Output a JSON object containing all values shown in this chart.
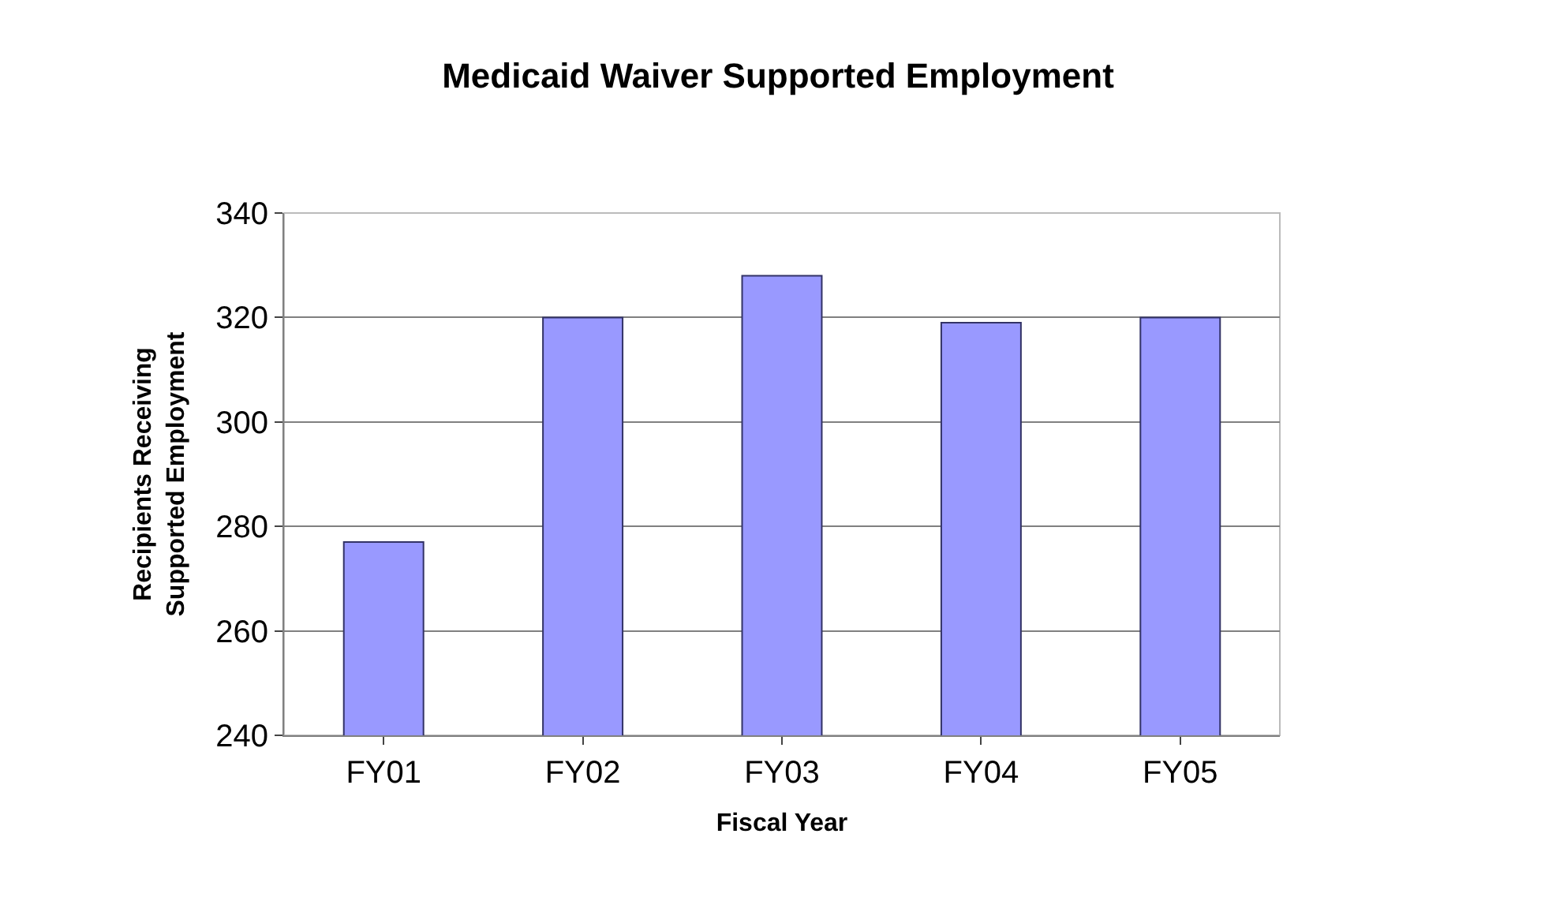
{
  "chart_data": {
    "type": "bar",
    "title": "Medicaid Waiver Supported Employment",
    "xlabel": "Fiscal Year",
    "ylabel": "Recipients Receiving\nSupported Employment",
    "categories": [
      "FY01",
      "FY02",
      "FY03",
      "FY04",
      "FY05"
    ],
    "values": [
      277,
      320,
      328,
      319,
      320
    ],
    "color": "#9999ff",
    "ylim": [
      240,
      340
    ],
    "yticks": [
      240,
      260,
      280,
      300,
      320,
      340
    ],
    "grid": "y",
    "legend": false
  }
}
